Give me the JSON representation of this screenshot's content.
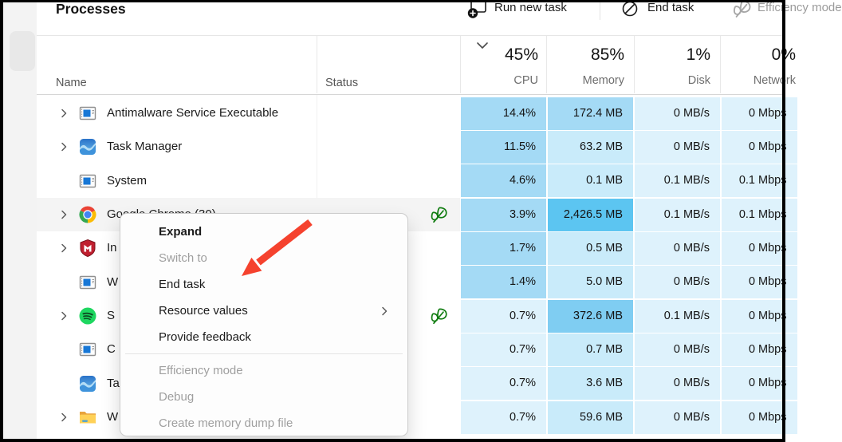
{
  "window": {
    "title": "Processes",
    "frame_color": "#000000",
    "sidebar_bg": "#f3f3f3",
    "sidebar_pill_bg": "#e8e8e8"
  },
  "toolbar": {
    "run_new_task": {
      "label": "Run new task",
      "icon": "run-new-task-icon"
    },
    "end_task": {
      "label": "End task",
      "icon": "end-task-icon"
    },
    "efficiency_mode": {
      "label": "Efficiency mode",
      "icon": "leaf-icon",
      "disabled": true
    }
  },
  "columns": {
    "name": {
      "label": "Name"
    },
    "status": {
      "label": "Status"
    },
    "cpu": {
      "percent": "45%",
      "label": "CPU",
      "sorted_descending": true
    },
    "memory": {
      "percent": "85%",
      "label": "Memory"
    },
    "disk": {
      "percent": "1%",
      "label": "Disk"
    },
    "network": {
      "percent": "0%",
      "label": "Network"
    }
  },
  "heat_colors": {
    "h1": "#def2fc",
    "h2": "#c9ebfa",
    "h3": "#a4daf5",
    "h4": "#7fcdf2",
    "h5": "#5cc5f1"
  },
  "leaf_color": "#107c10",
  "rows": [
    {
      "name": "Antimalware Service Executable",
      "icon": "app-window-icon",
      "expandable": true,
      "status_leaf": false,
      "hover": false,
      "cpu": "14.4%",
      "memory": "172.4 MB",
      "disk": "0 MB/s",
      "network": "0 Mbps",
      "heat": {
        "cpu": "h3",
        "memory": "h3",
        "disk": "h1",
        "network": "h1"
      }
    },
    {
      "name": "Task Manager",
      "icon": "task-manager-icon",
      "expandable": true,
      "status_leaf": false,
      "hover": false,
      "cpu": "11.5%",
      "memory": "63.2 MB",
      "disk": "0 MB/s",
      "network": "0 Mbps",
      "heat": {
        "cpu": "h3",
        "memory": "h2",
        "disk": "h1",
        "network": "h1"
      }
    },
    {
      "name": "System",
      "icon": "app-window-icon",
      "expandable": false,
      "status_leaf": false,
      "hover": false,
      "cpu": "4.6%",
      "memory": "0.1 MB",
      "disk": "0.1 MB/s",
      "network": "0.1 Mbps",
      "heat": {
        "cpu": "h3",
        "memory": "h2",
        "disk": "h1",
        "network": "h1"
      }
    },
    {
      "name": "Google Chrome (30)",
      "icon": "chrome-icon",
      "expandable": true,
      "status_leaf": true,
      "hover": true,
      "cpu": "3.9%",
      "memory": "2,426.5 MB",
      "disk": "0.1 MB/s",
      "network": "0.1 Mbps",
      "heat": {
        "cpu": "h3",
        "memory": "h5",
        "disk": "h1",
        "network": "h1"
      }
    },
    {
      "name": "In",
      "icon": "mcafee-icon",
      "expandable": true,
      "status_leaf": false,
      "hover": false,
      "cpu": "1.7%",
      "memory": "0.5 MB",
      "disk": "0 MB/s",
      "network": "0 Mbps",
      "heat": {
        "cpu": "h3",
        "memory": "h2",
        "disk": "h1",
        "network": "h1"
      }
    },
    {
      "name": "W",
      "icon": "app-window-icon",
      "expandable": false,
      "status_leaf": false,
      "hover": false,
      "cpu": "1.4%",
      "memory": "5.0 MB",
      "disk": "0 MB/s",
      "network": "0 Mbps",
      "heat": {
        "cpu": "h3",
        "memory": "h2",
        "disk": "h1",
        "network": "h1"
      }
    },
    {
      "name": "S",
      "icon": "spotify-icon",
      "expandable": true,
      "status_leaf": true,
      "hover": false,
      "cpu": "0.7%",
      "memory": "372.6 MB",
      "disk": "0.1 MB/s",
      "network": "0 Mbps",
      "heat": {
        "cpu": "h1",
        "memory": "h4",
        "disk": "h1",
        "network": "h1"
      }
    },
    {
      "name": "C",
      "icon": "app-window-icon",
      "expandable": false,
      "status_leaf": false,
      "hover": false,
      "cpu": "0.7%",
      "memory": "0.7 MB",
      "disk": "0 MB/s",
      "network": "0 Mbps",
      "heat": {
        "cpu": "h1",
        "memory": "h2",
        "disk": "h1",
        "network": "h1"
      }
    },
    {
      "name": "Ta",
      "icon": "task-manager-icon",
      "expandable": false,
      "status_leaf": false,
      "hover": false,
      "cpu": "0.7%",
      "memory": "3.6 MB",
      "disk": "0 MB/s",
      "network": "0 Mbps",
      "heat": {
        "cpu": "h1",
        "memory": "h2",
        "disk": "h1",
        "network": "h1"
      }
    },
    {
      "name": "W",
      "icon": "folder-icon",
      "expandable": true,
      "status_leaf": false,
      "hover": false,
      "cpu": "0.7%",
      "memory": "59.6 MB",
      "disk": "0 MB/s",
      "network": "0 Mbps",
      "heat": {
        "cpu": "h1",
        "memory": "h2",
        "disk": "h1",
        "network": "h1"
      }
    }
  ],
  "context_menu": {
    "items": [
      {
        "label": "Expand",
        "bold": true,
        "enabled": true
      },
      {
        "label": "Switch to",
        "enabled": false
      },
      {
        "label": "End task",
        "enabled": true
      },
      {
        "label": "Resource values",
        "enabled": true,
        "submenu": true
      },
      {
        "label": "Provide feedback",
        "enabled": true
      },
      {
        "separator": true
      },
      {
        "label": "Efficiency mode",
        "enabled": false
      },
      {
        "label": "Debug",
        "enabled": false
      },
      {
        "label": "Create memory dump file",
        "enabled": false
      }
    ]
  },
  "annotation_arrow": {
    "color": "#f5422e",
    "points_at": "End task"
  }
}
